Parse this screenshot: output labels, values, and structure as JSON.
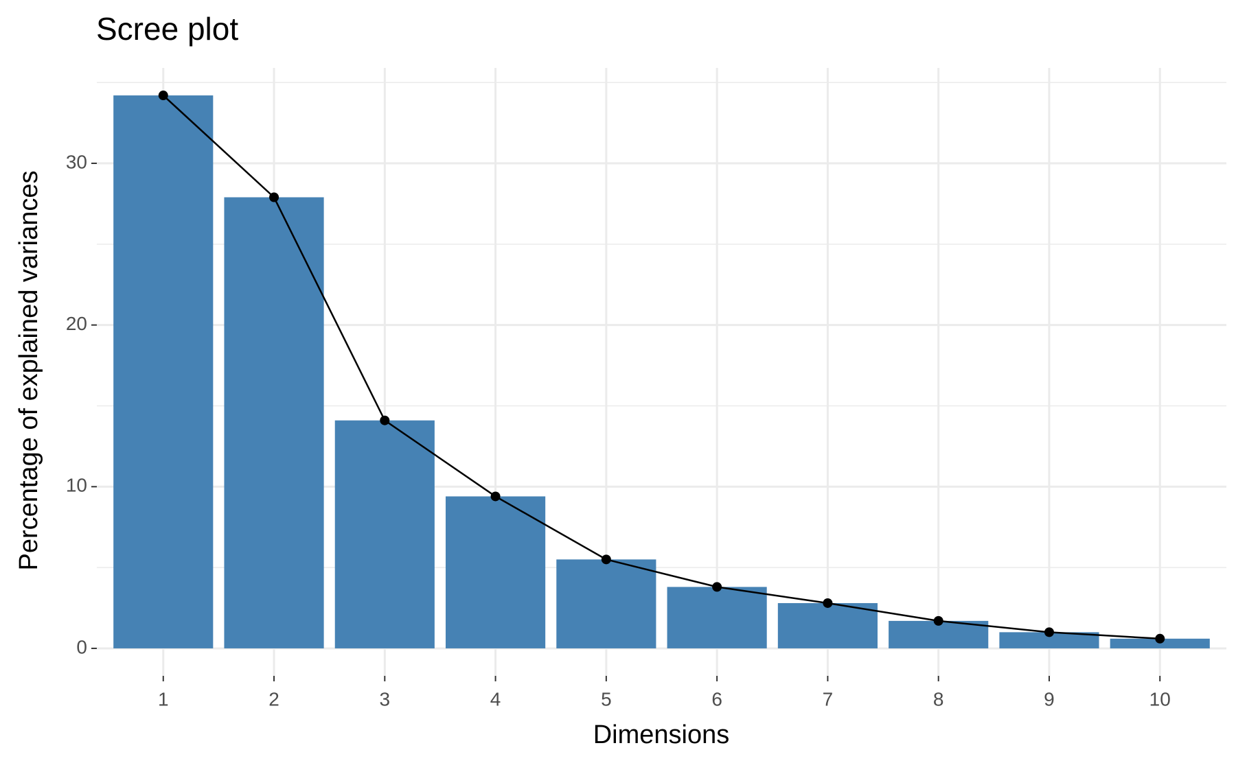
{
  "chart_data": {
    "type": "bar",
    "title": "Scree plot",
    "x_label": "Dimensions",
    "y_label": "Percentage of explained variances",
    "categories": [
      "1",
      "2",
      "3",
      "4",
      "5",
      "6",
      "7",
      "8",
      "9",
      "10"
    ],
    "values": [
      34.2,
      27.9,
      14.1,
      9.4,
      5.5,
      3.8,
      2.8,
      1.7,
      1.0,
      0.6
    ],
    "color": "#4682b4",
    "line_color": "#000000",
    "ylim": [
      -1.7,
      35.9
    ],
    "yticks": [
      0,
      10,
      20,
      30
    ],
    "minor_yticks": [
      5,
      15,
      25,
      35
    ],
    "grid": true
  }
}
